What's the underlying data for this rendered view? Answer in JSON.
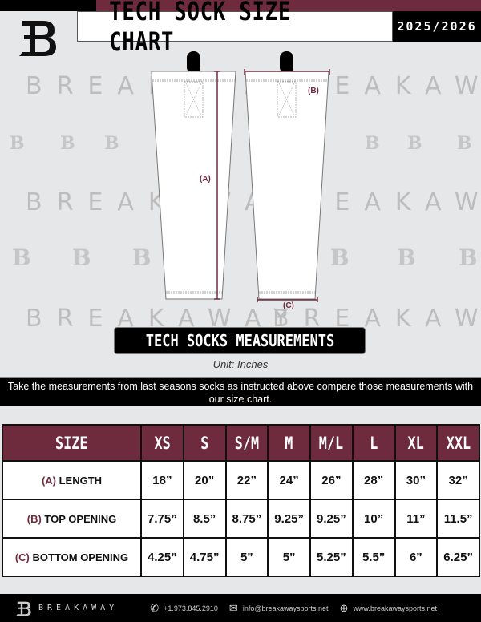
{
  "header": {
    "title": "TECH SOCK SIZE CHART",
    "season": "2025/2026",
    "logo_letter": "B"
  },
  "colors": {
    "brand": "#6f2b3e",
    "dark": "#000000",
    "background": "#e6e7e9"
  },
  "watermark": {
    "text": "BREAKAWAY",
    "logo": "B"
  },
  "diagram": {
    "length_label": "(A)",
    "top_label": "(B)",
    "bottom_label": "(C)"
  },
  "measurements": {
    "title": "TECH SOCKS MEASUREMENTS",
    "unit": "Unit: Inches",
    "instruction": "Take the measurements from last seasons socks as instructed above compare those measurements  with our size chart."
  },
  "table": {
    "header": "SIZE",
    "sizes": [
      "XS",
      "S",
      "S/M",
      "M",
      "M/L",
      "L",
      "XL",
      "XXL"
    ],
    "rows": [
      {
        "key": "(A)",
        "label": "LENGTH",
        "values": [
          "18”",
          "20”",
          "22”",
          "24”",
          "26”",
          "28”",
          "30”",
          "32”"
        ]
      },
      {
        "key": "(B)",
        "label": "TOP OPENING",
        "values": [
          "7.75”",
          "8.5”",
          "8.75”",
          "9.25”",
          "9.25”",
          "10”",
          "11”",
          "11.5”"
        ]
      },
      {
        "key": "(C)",
        "label": "BOTTOM OPENING",
        "values": [
          "4.25”",
          "4.75”",
          "5”",
          "5”",
          "5.25”",
          "5.5”",
          "6”",
          "6.25”"
        ]
      }
    ]
  },
  "footer": {
    "brand": "BREAKAWAY",
    "phone": "+1.973.845.2910",
    "email": "info@breakawaysports.net",
    "website": "www.breakawaysports.net",
    "icons": [
      "phone-icon",
      "mail-icon",
      "globe-icon"
    ]
  }
}
